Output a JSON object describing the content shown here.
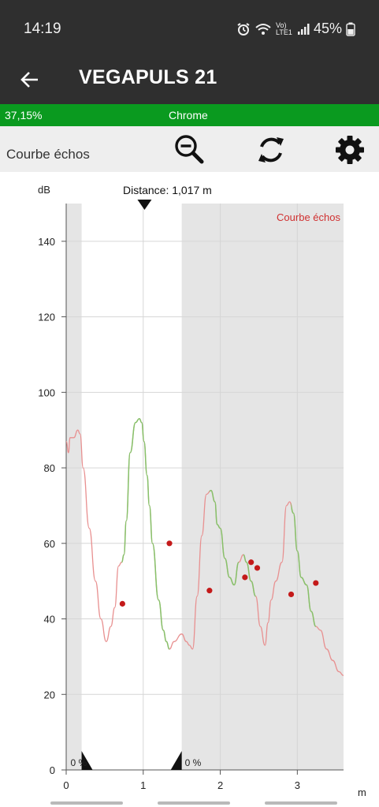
{
  "status_bar": {
    "time": "14:19",
    "network_label": "Vo) LTE1",
    "battery": "45%",
    "icons": [
      "alarm-icon",
      "wifi-icon",
      "signal-icon",
      "battery-icon"
    ]
  },
  "app_bar": {
    "title": "VEGAPULS 21",
    "back_icon": "arrow-left-icon"
  },
  "status_strip": {
    "percent": "37,15%",
    "center_label": "Chrome",
    "color": "#0a9a1f"
  },
  "toolbar": {
    "label": "Courbe échos",
    "buttons": [
      "zoom-out-icon",
      "refresh-icon",
      "settings-icon"
    ]
  },
  "chart_data": {
    "type": "line",
    "title": "",
    "xlabel": "m",
    "ylabel": "dB",
    "xlim": [
      0,
      3.6
    ],
    "ylim": [
      0,
      150
    ],
    "x_ticks": [
      0,
      1,
      2,
      3
    ],
    "y_ticks": [
      0,
      20,
      40,
      60,
      80,
      100,
      120,
      140
    ],
    "grid": true,
    "legend": {
      "label": "Courbe échos",
      "placement": "top-right",
      "color": "#d03030"
    },
    "distance_marker": {
      "label": "Distance: 1,017 m",
      "x": 1.017
    },
    "shaded_regions": [
      [
        0,
        0.2
      ],
      [
        1.5,
        3.6
      ]
    ],
    "range_markers": [
      {
        "x": 0.2,
        "label": "0 %"
      },
      {
        "x": 1.5,
        "label": "0 %"
      }
    ],
    "colors": {
      "curve": "#e89090",
      "echo_segment": "#86c26a",
      "points": "#c41a1a",
      "shade": "#e5e5e5"
    },
    "series": [
      {
        "x": [
          0.0,
          0.03,
          0.05,
          0.1,
          0.15,
          0.18,
          0.22,
          0.3,
          0.38,
          0.45,
          0.52,
          0.58,
          0.63,
          0.68,
          0.72,
          0.75,
          0.78,
          0.83,
          0.9,
          0.95,
          0.98,
          1.01,
          1.05,
          1.08,
          1.12,
          1.2,
          1.26,
          1.3,
          1.34,
          1.4,
          1.5,
          1.56,
          1.6,
          1.64,
          1.7,
          1.76,
          1.82,
          1.88,
          1.93,
          1.96,
          2.0,
          2.06,
          2.12,
          2.18,
          2.24,
          2.3,
          2.34,
          2.4,
          2.46,
          2.52,
          2.58,
          2.62,
          2.66,
          2.72,
          2.8,
          2.86,
          2.9,
          2.95,
          3.0,
          3.05,
          3.12,
          3.18,
          3.24,
          3.3,
          3.38,
          3.46,
          3.54,
          3.6
        ],
        "y": [
          87,
          84,
          88,
          88,
          90,
          89,
          80,
          64,
          50,
          40,
          34,
          38,
          43,
          54,
          55,
          57,
          66,
          84,
          92,
          93,
          92,
          87,
          78,
          70,
          60,
          45,
          37,
          34,
          32,
          34,
          36,
          34,
          33,
          32,
          46,
          62,
          73,
          74,
          71,
          65,
          64,
          56,
          51,
          49,
          55,
          57,
          55,
          50,
          46,
          38,
          33,
          39,
          45,
          50,
          55,
          70,
          71,
          68,
          58,
          51,
          49,
          42,
          38,
          37,
          32,
          29,
          26,
          25
        ]
      }
    ],
    "echo_segments": [
      [
        0.72,
        1.34
      ],
      [
        1.86,
        2.24
      ],
      [
        2.3,
        2.46
      ],
      [
        2.92,
        3.24
      ]
    ],
    "points": [
      {
        "x": 0.73,
        "y": 44
      },
      {
        "x": 1.34,
        "y": 60
      },
      {
        "x": 1.86,
        "y": 47.5
      },
      {
        "x": 2.32,
        "y": 51
      },
      {
        "x": 2.4,
        "y": 55
      },
      {
        "x": 2.48,
        "y": 53.5
      },
      {
        "x": 2.92,
        "y": 46.5
      },
      {
        "x": 3.24,
        "y": 49.5
      }
    ]
  }
}
